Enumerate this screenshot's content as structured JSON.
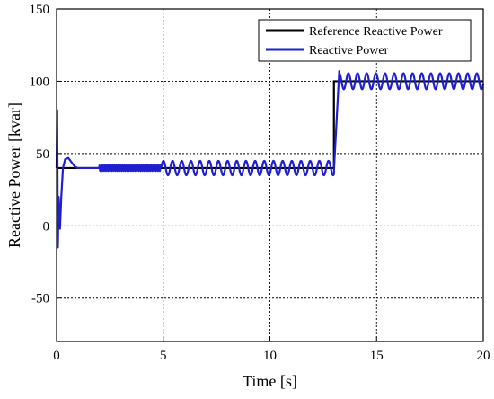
{
  "chart_data": {
    "type": "line",
    "title": "",
    "xlabel": "Time [s]",
    "ylabel": "Reactive Power [kvar]",
    "xlim": [
      0,
      20
    ],
    "ylim": [
      -80,
      150
    ],
    "xticks": [
      0,
      5,
      10,
      15,
      20
    ],
    "yticks": [
      -50,
      0,
      50,
      100,
      150
    ],
    "grid": true,
    "legend_position": "top-right",
    "series": [
      {
        "name": "Reference Reactive Power",
        "color": "#000000",
        "x": [
          0,
          13.0,
          13.0,
          20
        ],
        "y": [
          40,
          40,
          100,
          100
        ]
      },
      {
        "name": "Reactive Power",
        "color": "#1f1fd0",
        "description_points": {
          "x": [
            0,
            0.03,
            0.06,
            0.1,
            0.16,
            0.22,
            0.3,
            0.4,
            0.55,
            0.7,
            0.85,
            1.0,
            1.2,
            1.5,
            2.0,
            2.5,
            3.0,
            3.5,
            4.0,
            4.5,
            5.0
          ],
          "y": [
            40,
            80,
            -15,
            20,
            -2,
            20,
            40,
            46,
            47,
            44,
            41,
            40,
            40,
            40,
            40,
            40,
            41,
            40,
            40,
            40,
            40
          ]
        },
        "oscillation": [
          {
            "t_start": 2.0,
            "t_end": 5.0,
            "center": 40,
            "amplitude": 2,
            "period": 0.09
          },
          {
            "t_start": 4.9,
            "t_end": 13.0,
            "center": 40,
            "amplitude": 5,
            "period": 0.43
          },
          {
            "t_start": 13.0,
            "t_end": 20.0,
            "center": 100,
            "amplitude": 5.5,
            "period": 0.43
          }
        ],
        "step_transient": {
          "t": 13.0,
          "from": 38,
          "to": 107,
          "rise_time": 0.25
        }
      }
    ]
  }
}
